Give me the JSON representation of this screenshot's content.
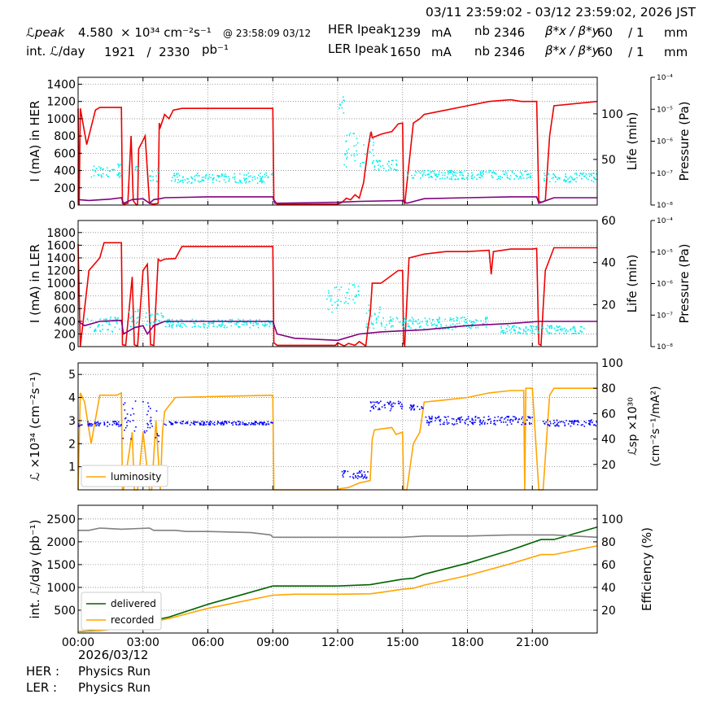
{
  "header": {
    "range": "03/11 23:59:02 - 03/12 23:59:02, 2026 JST",
    "lpeak_label": "ℒpeak",
    "lpeak_value": "4.580",
    "lpeak_unit": "× 10³⁴ cm⁻²s⁻¹",
    "lpeak_time": "@ 23:58:09 03/12",
    "intl_label": "int. ℒ/day",
    "intl_values": "1921   /  2330",
    "intl_unit": "pb⁻¹",
    "her_label": "HER Ipeak",
    "her_value": "1239",
    "ler_label": "LER Ipeak",
    "ler_value": "1650",
    "current_unit": "mA",
    "nb_label": "nb",
    "nb_value": "2346",
    "beta_label": "β*x / β*y",
    "beta_value": "60    / 1",
    "beta_unit": "mm"
  },
  "footer": {
    "date": "2026/03/12",
    "her_label": "HER :",
    "her_status": "Physics Run",
    "ler_label": "LER :",
    "ler_status": "Physics Run"
  },
  "colors": {
    "current": "#ee0000",
    "lifetime": "#00eeee",
    "pressure": "#800080",
    "luminosity": "#ffa500",
    "specific": "#0000ff",
    "delivered": "#006400",
    "recorded": "#ffa500",
    "efficiency": "#808080"
  },
  "chart_data": [
    {
      "type": "line",
      "ylabel": "I (mA) in HER",
      "y2label": "Life (min)",
      "y3label": "Pressure (Pa)",
      "x_ticks": [
        "00:00",
        "03:00",
        "06:00",
        "09:00",
        "12:00",
        "15:00",
        "18:00",
        "21:00"
      ],
      "ylim": [
        0,
        1480
      ],
      "yticks": [
        0,
        200,
        400,
        600,
        800,
        1000,
        1200,
        1400
      ],
      "y2lim": [
        0,
        140
      ],
      "y2ticks": [
        50,
        100
      ],
      "y3ticks": [
        "10⁻⁸",
        "10⁻⁷",
        "10⁻⁶",
        "10⁻⁵",
        "10⁻⁴"
      ],
      "series": [
        {
          "key": "current",
          "x": [
            0,
            0.05,
            0.1,
            0.4,
            0.8,
            1.0,
            2.0,
            2.05,
            2.1,
            2.3,
            2.45,
            2.55,
            2.7,
            2.75,
            2.8,
            3.0,
            3.1,
            3.3,
            3.5,
            3.7,
            3.75,
            3.8,
            4.0,
            4.2,
            4.4,
            4.6,
            4.8,
            9.0,
            9.05,
            9.2,
            12.0,
            12.2,
            12.4,
            12.6,
            12.8,
            13.0,
            13.2,
            13.4,
            13.5,
            13.55,
            13.6,
            13.8,
            14.0,
            14.3,
            14.5,
            14.8,
            15.0,
            15.05,
            15.1,
            15.5,
            15.8,
            16.0,
            17.0,
            18.0,
            19.0,
            20.0,
            20.5,
            21.0,
            21.2,
            21.3,
            21.4,
            21.6,
            21.8,
            22.0,
            23.99
          ],
          "y": [
            1120,
            0,
            1120,
            700,
            1100,
            1130,
            1130,
            20,
            10,
            20,
            800,
            50,
            0,
            10,
            650,
            750,
            800,
            20,
            10,
            20,
            950,
            900,
            1050,
            1000,
            1100,
            1110,
            1120,
            1120,
            60,
            10,
            10,
            30,
            80,
            60,
            120,
            80,
            260,
            650,
            800,
            850,
            780,
            800,
            820,
            840,
            850,
            940,
            950,
            60,
            10,
            950,
            1000,
            1050,
            1100,
            1150,
            1200,
            1220,
            1200,
            1200,
            1200,
            50,
            30,
            50,
            800,
            1150,
            1200
          ]
        },
        {
          "key": "lifetime",
          "scatter": true,
          "band": [
            [
              0.6,
              2.0,
              30,
              45
            ],
            [
              2.6,
              2.8,
              35,
              45
            ],
            [
              3.3,
              3.8,
              25,
              40
            ],
            [
              4.3,
              9.0,
              24,
              35
            ],
            [
              12.0,
              12.3,
              100,
              125
            ],
            [
              12.3,
              13.7,
              40,
              80
            ],
            [
              13.6,
              14.8,
              35,
              50
            ],
            [
              15.2,
              21.0,
              28,
              38
            ],
            [
              21.5,
              23.99,
              25,
              35
            ]
          ]
        },
        {
          "key": "pressure",
          "x": [
            0,
            0.5,
            1.5,
            2.0,
            2.1,
            2.5,
            3.0,
            3.3,
            3.5,
            3.8,
            4.0,
            5.0,
            6.0,
            9.0,
            9.1,
            12.0,
            13.0,
            15.0,
            15.2,
            16.0,
            18.0,
            20.0,
            21.2,
            21.3,
            22.0,
            23.99
          ],
          "y2": [
            6,
            5,
            6.5,
            8,
            2,
            6,
            7,
            2,
            6,
            7,
            8,
            8.5,
            9,
            9,
            2,
            3,
            4,
            5,
            2,
            7,
            8,
            9,
            9,
            2,
            8,
            8
          ]
        }
      ]
    },
    {
      "type": "line",
      "ylabel": "I (mA) in LER",
      "y2label": "Life (min)",
      "y3label": "Pressure (Pa)",
      "ylim": [
        0,
        1990
      ],
      "yticks": [
        0,
        200,
        400,
        600,
        800,
        1000,
        1200,
        1400,
        1600,
        1800
      ],
      "y2lim": [
        0,
        60
      ],
      "y2ticks": [
        20,
        40,
        60
      ],
      "y3ticks": [
        "10⁻⁸",
        "10⁻⁷",
        "10⁻⁶",
        "10⁻⁵",
        "10⁻⁴"
      ],
      "series": [
        {
          "key": "current",
          "x": [
            0,
            0.1,
            0.5,
            1.0,
            1.2,
            2.0,
            2.05,
            2.2,
            2.5,
            2.6,
            2.75,
            3.0,
            3.2,
            3.35,
            3.5,
            3.7,
            3.8,
            4.0,
            4.5,
            4.8,
            9.0,
            9.05,
            9.2,
            11.9,
            12.0,
            12.3,
            12.5,
            12.8,
            13.0,
            13.3,
            13.4,
            13.5,
            13.6,
            14.0,
            14.8,
            15.0,
            15.05,
            15.1,
            15.3,
            16.0,
            17.0,
            18.0,
            19.0,
            19.1,
            19.2,
            20.0,
            21.0,
            21.2,
            21.3,
            21.4,
            21.6,
            22.0,
            23.5,
            23.99
          ],
          "y": [
            1620,
            0,
            1200,
            1400,
            1640,
            1640,
            30,
            20,
            1100,
            30,
            10,
            1200,
            1300,
            30,
            20,
            1380,
            1350,
            1380,
            1390,
            1580,
            1580,
            60,
            20,
            20,
            60,
            10,
            50,
            20,
            80,
            10,
            300,
            500,
            1000,
            1000,
            1200,
            1200,
            50,
            20,
            1400,
            1460,
            1500,
            1500,
            1520,
            1140,
            1500,
            1540,
            1540,
            1550,
            40,
            20,
            1200,
            1560,
            1560,
            1560
          ]
        },
        {
          "key": "lifetime",
          "scatter": true,
          "band": [
            [
              0.4,
              2.0,
              7,
              14
            ],
            [
              2.3,
              2.8,
              9,
              18
            ],
            [
              3.1,
              4.0,
              10,
              16
            ],
            [
              4.0,
              9.0,
              9,
              13
            ],
            [
              11.5,
              12.2,
              15,
              30
            ],
            [
              12.3,
              13.0,
              20,
              30
            ],
            [
              13.3,
              14.0,
              8,
              22
            ],
            [
              14.0,
              19.0,
              8,
              14
            ],
            [
              19.5,
              23.5,
              6,
              10
            ]
          ]
        },
        {
          "key": "pressure",
          "x": [
            0,
            0.3,
            1.0,
            2.0,
            2.1,
            2.6,
            3.0,
            3.2,
            3.5,
            4.0,
            5.0,
            9.0,
            9.2,
            10.0,
            12.0,
            13.0,
            14.0,
            15.0,
            16.0,
            18.0,
            20.0,
            21.3,
            23.99
          ],
          "y2": [
            12,
            10,
            12,
            12.5,
            6,
            9,
            10,
            6,
            10,
            12,
            12,
            12,
            6,
            4,
            3,
            6,
            7,
            7.5,
            8,
            10,
            11,
            12,
            12
          ]
        }
      ]
    },
    {
      "type": "line",
      "ylabel": "ℒ ×10³⁴ (cm⁻²s⁻¹)",
      "y2label": "ℒsp ×10³⁰",
      "y2label2": "(cm⁻²s⁻¹/mA²)",
      "ylim": [
        0,
        5.5
      ],
      "yticks": [
        1,
        2,
        3,
        4,
        5
      ],
      "y2lim": [
        0,
        100
      ],
      "y2ticks": [
        20,
        40,
        60,
        80,
        100
      ],
      "legend": [
        "luminosity"
      ],
      "series": [
        {
          "key": "luminosity",
          "name": "luminosity",
          "x": [
            0,
            0.1,
            0.3,
            0.6,
            1.0,
            1.8,
            2.0,
            2.05,
            2.1,
            2.5,
            2.6,
            2.75,
            3.0,
            3.3,
            3.4,
            3.6,
            3.8,
            3.9,
            4.0,
            4.5,
            9.0,
            9.05,
            12.0,
            12.1,
            12.5,
            13.0,
            13.5,
            13.6,
            13.7,
            14.5,
            14.7,
            15.0,
            15.05,
            15.2,
            15.5,
            15.8,
            16.0,
            17.0,
            18.0,
            19.0,
            20.0,
            20.6,
            20.65,
            20.7,
            21.0,
            21.3,
            21.5,
            21.8,
            22.0,
            23.99
          ],
          "y": [
            0,
            4.2,
            3.8,
            2.0,
            4.1,
            4.1,
            4.2,
            0,
            0,
            2.5,
            0,
            0,
            2.5,
            0,
            0,
            3.0,
            0,
            2.5,
            3.4,
            4.0,
            4.1,
            0,
            0,
            0.05,
            0.1,
            0.3,
            0.4,
            2.2,
            2.6,
            2.7,
            2.4,
            2.5,
            0,
            0,
            2.0,
            2.5,
            3.8,
            3.9,
            4.0,
            4.2,
            4.3,
            4.3,
            0,
            4.4,
            4.4,
            0,
            0,
            4.1,
            4.4,
            4.4
          ]
        },
        {
          "key": "specific",
          "scatter": true,
          "band": [
            [
              0,
              0.2,
              50,
              52
            ],
            [
              0.4,
              2.0,
              50,
              54
            ],
            [
              2.0,
              2.7,
              40,
              70
            ],
            [
              3.0,
              3.8,
              35,
              70
            ],
            [
              4.0,
              9.0,
              51,
              54
            ],
            [
              12.1,
              13.4,
              9,
              15
            ],
            [
              13.5,
              15.0,
              62,
              70
            ],
            [
              15.3,
              16.0,
              63,
              67
            ],
            [
              16.0,
              21.0,
              51,
              58
            ],
            [
              21.5,
              23.99,
              50,
              55
            ]
          ]
        }
      ]
    },
    {
      "type": "line",
      "ylabel": "int. ℒ/day (pb⁻¹)",
      "y2label": "Efficiency (%)",
      "x_ticks": [
        "00:00",
        "03:00",
        "06:00",
        "09:00",
        "12:00",
        "15:00",
        "18:00",
        "21:00"
      ],
      "ylim": [
        0,
        2800
      ],
      "yticks": [
        500,
        1000,
        1500,
        2000,
        2500
      ],
      "y2lim": [
        0,
        112
      ],
      "y2ticks": [
        20,
        40,
        60,
        80,
        100
      ],
      "legend": [
        "delivered",
        "recorded"
      ],
      "series": [
        {
          "key": "delivered",
          "name": "delivered",
          "x": [
            0,
            1.0,
            2.0,
            2.5,
            3.0,
            3.8,
            4.2,
            6.0,
            9.0,
            10.0,
            12.0,
            13.5,
            14.0,
            15.0,
            15.5,
            16.0,
            18.0,
            20.0,
            21.4,
            22.0,
            23.99
          ],
          "y": [
            30,
            60,
            130,
            150,
            210,
            310,
            350,
            630,
            1030,
            1030,
            1030,
            1060,
            1100,
            1180,
            1200,
            1290,
            1530,
            1820,
            2050,
            2050,
            2320
          ]
        },
        {
          "key": "recorded",
          "name": "recorded",
          "x": [
            0,
            1.0,
            2.0,
            2.5,
            3.0,
            3.8,
            4.2,
            6.0,
            9.0,
            10.0,
            12.0,
            13.5,
            14.0,
            15.0,
            15.5,
            16.0,
            18.0,
            20.0,
            21.4,
            22.0,
            23.99
          ],
          "y": [
            30,
            50,
            110,
            130,
            180,
            280,
            320,
            540,
            830,
            850,
            850,
            860,
            890,
            960,
            980,
            1050,
            1260,
            1520,
            1720,
            1720,
            1910
          ]
        },
        {
          "key": "efficiency",
          "x": [
            0,
            0.5,
            1.0,
            2.0,
            3.3,
            3.5,
            4.0,
            4.5,
            5.0,
            6.0,
            8.0,
            8.9,
            9.0,
            10.0,
            12.0,
            14.0,
            15.0,
            16.0,
            18.0,
            20.0,
            22.0,
            23.99
          ],
          "y2": [
            90,
            90,
            92,
            91,
            92,
            90,
            90,
            90,
            89,
            89,
            88,
            86,
            84,
            84,
            84,
            84,
            84,
            85,
            85,
            86,
            86,
            84
          ]
        }
      ]
    }
  ]
}
